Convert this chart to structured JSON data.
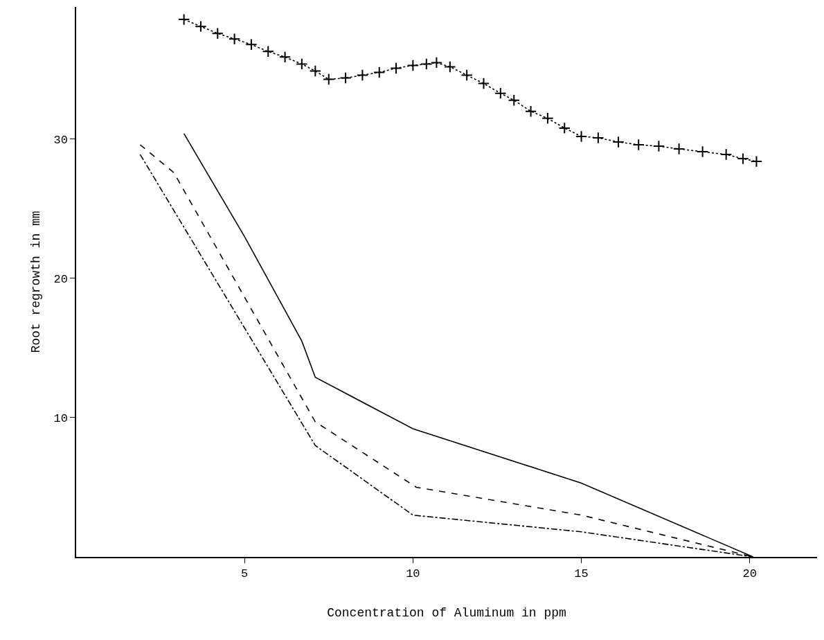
{
  "chart_data": {
    "type": "line",
    "xlabel": "Concentration of Aluminum in ppm",
    "ylabel": "Root regrowth in mm",
    "xlim": [
      0,
      22
    ],
    "ylim": [
      0,
      39.5
    ],
    "xticks": [
      5,
      10,
      15,
      20
    ],
    "yticks": [
      10,
      20,
      30
    ],
    "series": [
      {
        "color": "#000000",
        "line_style": "dotted",
        "marker": "cross",
        "x": [
          3.2,
          3.7,
          4.2,
          4.7,
          5.2,
          5.7,
          6.2,
          6.7,
          7.1,
          7.5,
          8.0,
          8.5,
          9.0,
          9.5,
          10.0,
          10.4,
          10.7,
          11.1,
          11.6,
          12.1,
          12.6,
          13.0,
          13.5,
          14.0,
          14.5,
          15.0,
          15.5,
          16.1,
          16.7,
          17.3,
          17.9,
          18.6,
          19.3,
          19.8,
          20.2
        ],
        "values": [
          38.6,
          38.1,
          37.6,
          37.2,
          36.8,
          36.3,
          35.9,
          35.4,
          34.9,
          34.3,
          34.4,
          34.6,
          34.8,
          35.1,
          35.3,
          35.4,
          35.5,
          35.2,
          34.6,
          34.0,
          33.3,
          32.8,
          32.0,
          31.5,
          30.8,
          30.2,
          30.1,
          29.8,
          29.6,
          29.5,
          29.3,
          29.1,
          28.9,
          28.6,
          28.4
        ]
      },
      {
        "color": "#000000",
        "line_style": "solid",
        "marker": "none",
        "x": [
          3.2,
          5.0,
          6.7,
          7.1,
          10.0,
          15.0,
          20.1
        ],
        "values": [
          30.4,
          23.0,
          15.5,
          12.9,
          9.2,
          5.3,
          0
        ]
      },
      {
        "color": "#000000",
        "line_style": "dashed",
        "marker": "none",
        "x": [
          1.9,
          2.9,
          7.1,
          10.1,
          15.0,
          20.1
        ],
        "values": [
          29.6,
          27.6,
          9.7,
          5.0,
          3.0,
          0
        ]
      },
      {
        "color": "#000000",
        "line_style": "dashdot",
        "marker": "none",
        "x": [
          1.9,
          7.1,
          10.0,
          15.0,
          20.1
        ],
        "values": [
          28.9,
          8.0,
          3.0,
          1.8,
          0
        ]
      }
    ]
  }
}
